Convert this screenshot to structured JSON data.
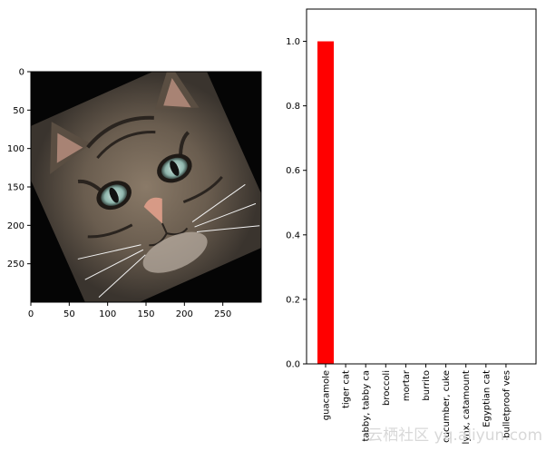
{
  "chart_data": [
    {
      "type": "image",
      "description": "image axes",
      "xlim": [
        0,
        299
      ],
      "ylim": [
        299,
        0
      ],
      "xticks": [
        "0",
        "50",
        "100",
        "150",
        "200",
        "250"
      ],
      "yticks": [
        "0",
        "50",
        "100",
        "150",
        "200",
        "250"
      ],
      "xtick_values": [
        0,
        50,
        100,
        150,
        200,
        250
      ],
      "ytick_values": [
        0,
        50,
        100,
        150,
        200,
        250
      ],
      "image_rotation_deg": 24
    },
    {
      "type": "bar",
      "categories": [
        "guacamole",
        "tiger cat",
        "tabby, tabby ca",
        "broccoli",
        "mortar",
        "burrito",
        "cucumber, cuke",
        "lynx, catamount",
        "Egyptian cat",
        "bulletproof ves"
      ],
      "values": [
        1.0,
        0.0,
        0.0,
        0.0,
        0.0,
        0.0,
        0.0,
        0.0,
        0.0,
        0.0
      ],
      "bar_colors": [
        "#ff0000",
        "#ff0000",
        "#ff0000",
        "#ff0000",
        "#ff0000",
        "#ff0000",
        "#ff0000",
        "#ff0000",
        "#ff0000",
        "#ff0000"
      ],
      "ylim": [
        0,
        1.1
      ],
      "yticks": [
        "0.0",
        "0.2",
        "0.4",
        "0.6",
        "0.8",
        "1.0"
      ],
      "ytick_values": [
        0,
        0.2,
        0.4,
        0.6,
        0.8,
        1.0
      ],
      "title": "",
      "xlabel": "",
      "ylabel": ""
    }
  ],
  "watermark": "云栖社区 yq.aliyun.com"
}
